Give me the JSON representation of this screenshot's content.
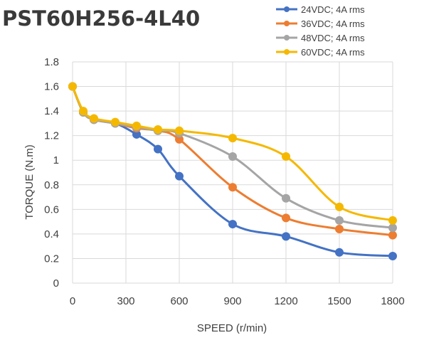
{
  "chart_data": {
    "type": "line",
    "title": "PST60H256-4L40",
    "xlabel": "SPEED (r/min)",
    "ylabel": "TORQUE (N.m)",
    "xlim": [
      0,
      1800
    ],
    "ylim": [
      0,
      1.8
    ],
    "x_ticks": [
      "0",
      "300",
      "600",
      "900",
      "1200",
      "1500",
      "1800"
    ],
    "y_ticks": [
      "0",
      "0.2",
      "0.4",
      "0.6",
      "0.8",
      "1",
      "1.2",
      "1.4",
      "1.6",
      "1.8"
    ],
    "grid": true,
    "legend_position": "top-right",
    "series": [
      {
        "name": "24VDC; 4A rms",
        "color": "#4472c4",
        "x": [
          0,
          60,
          120,
          240,
          360,
          480,
          600,
          900,
          1200,
          1500,
          1800
        ],
        "y": [
          1.6,
          1.39,
          1.33,
          1.3,
          1.21,
          1.09,
          0.87,
          0.48,
          0.38,
          0.25,
          0.22
        ]
      },
      {
        "name": "36VDC; 4A rms",
        "color": "#ed7d31",
        "x": [
          0,
          60,
          120,
          240,
          360,
          480,
          600,
          900,
          1200,
          1500,
          1800
        ],
        "y": [
          1.6,
          1.39,
          1.33,
          1.3,
          1.26,
          1.24,
          1.17,
          0.78,
          0.53,
          0.44,
          0.39
        ]
      },
      {
        "name": "48VDC; 4A rms",
        "color": "#a5a5a5",
        "x": [
          0,
          60,
          120,
          240,
          360,
          480,
          600,
          900,
          1200,
          1500,
          1800
        ],
        "y": [
          1.6,
          1.39,
          1.33,
          1.3,
          1.27,
          1.24,
          1.22,
          1.03,
          0.69,
          0.51,
          0.45
        ]
      },
      {
        "name": "60VDC; 4A rms",
        "color": "#f5b800",
        "x": [
          0,
          60,
          120,
          240,
          360,
          480,
          600,
          900,
          1200,
          1500,
          1800
        ],
        "y": [
          1.6,
          1.4,
          1.34,
          1.31,
          1.28,
          1.25,
          1.24,
          1.18,
          1.03,
          0.62,
          0.51
        ]
      }
    ]
  }
}
